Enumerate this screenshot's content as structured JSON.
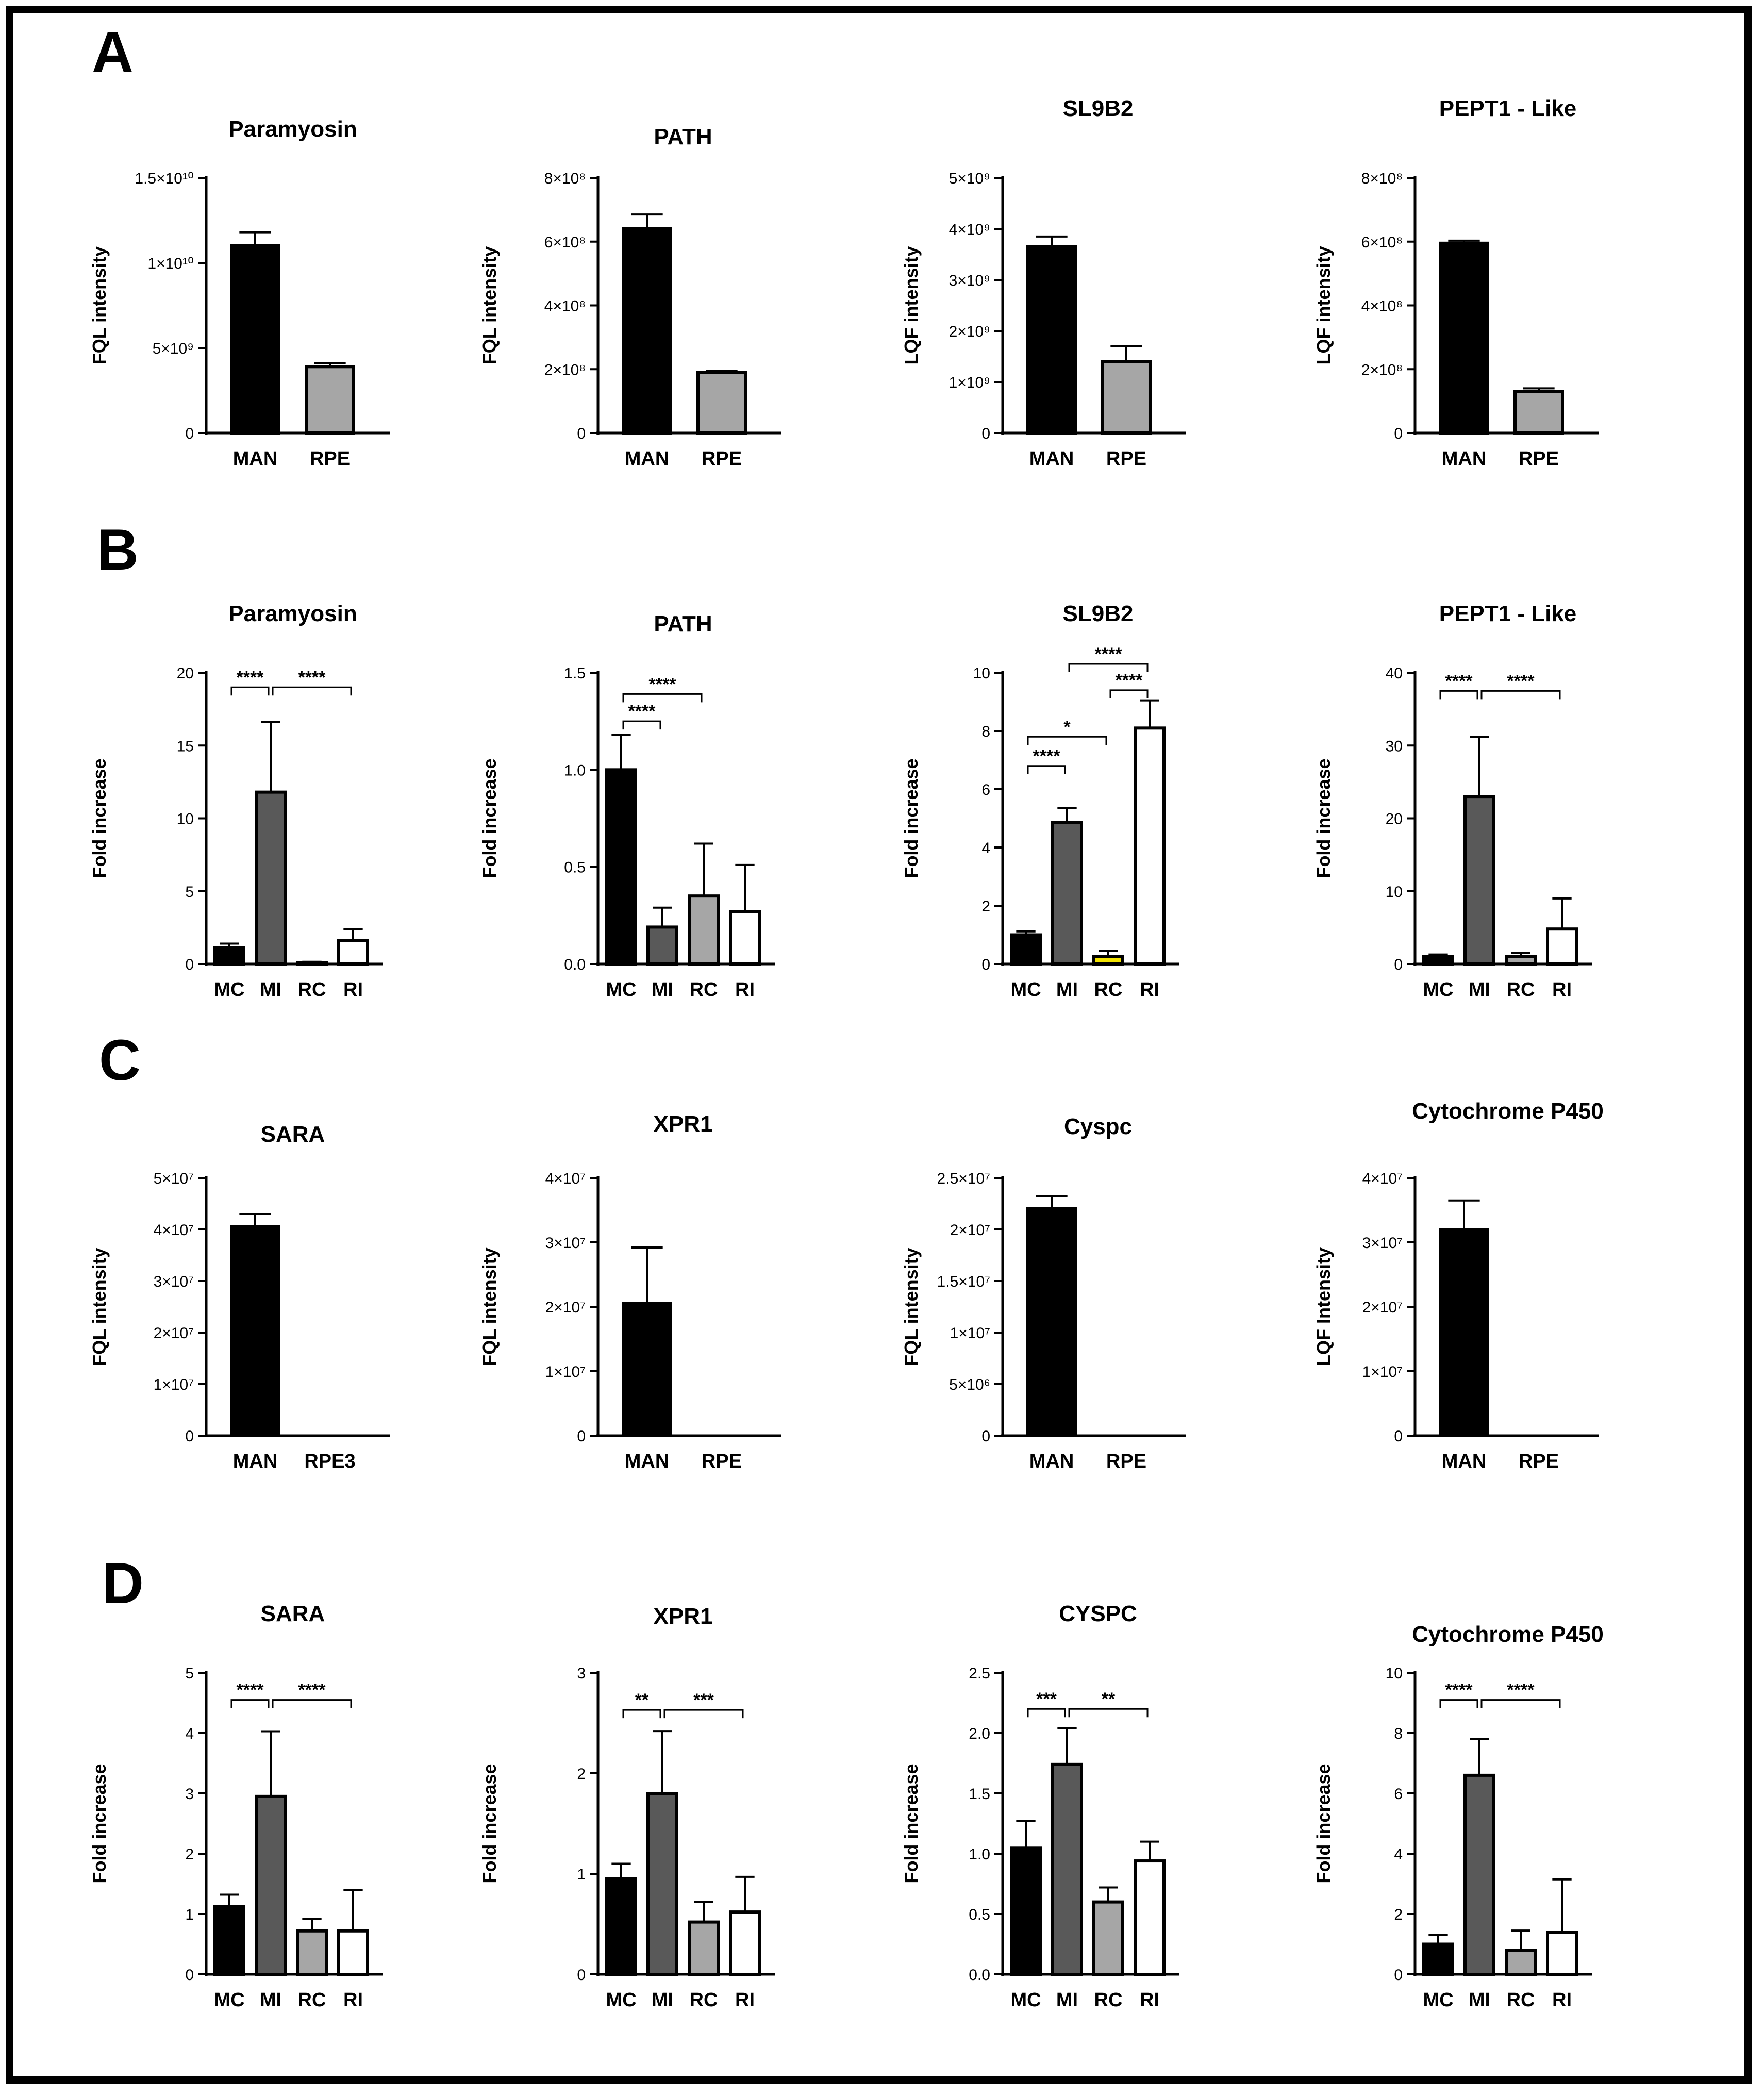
{
  "panels": [
    "A",
    "B",
    "C",
    "D"
  ],
  "colors": {
    "MAN": "#000000",
    "RPE": "#a6a6a6",
    "RPE3": "#a6a6a6",
    "MC": "#000000",
    "MI": "#595959",
    "RC": "#a6a6a6",
    "RI": "#ffffff",
    "RC_SL9B2": "#f2e300"
  },
  "chart_data": [
    {
      "id": "A1",
      "panel": "A",
      "type": "bar",
      "title": "Paramyosin",
      "ylabel": "FQL intensity",
      "categories": [
        "MAN",
        "RPE"
      ],
      "values": [
        11000000000,
        3900000000
      ],
      "errors": [
        800000000,
        200000000
      ],
      "ylim": [
        0,
        15000000000
      ],
      "ticks": [
        0,
        5000000000,
        10000000000,
        15000000000
      ],
      "tick_labels": [
        "0",
        "5×10⁹",
        "1×10¹⁰",
        "1.5×10¹⁰"
      ],
      "significance": []
    },
    {
      "id": "A2",
      "panel": "A",
      "type": "bar",
      "title": "PATH",
      "ylabel": "FQL intensity",
      "categories": [
        "MAN",
        "RPE"
      ],
      "values": [
        640000000,
        190000000
      ],
      "errors": [
        45000000,
        5000000
      ],
      "ylim": [
        0,
        800000000
      ],
      "ticks": [
        0,
        200000000,
        400000000,
        600000000,
        800000000
      ],
      "tick_labels": [
        "0",
        "2×10⁸",
        "4×10⁸",
        "6×10⁸",
        "8×10⁸"
      ],
      "significance": []
    },
    {
      "id": "A3",
      "panel": "A",
      "type": "bar",
      "title": "SL9B2",
      "ylabel": "LQF intensity",
      "categories": [
        "MAN",
        "RPE"
      ],
      "values": [
        3650000000,
        1400000000
      ],
      "errors": [
        200000000,
        300000000
      ],
      "ylim": [
        0,
        5000000000
      ],
      "ticks": [
        0,
        1000000000,
        2000000000,
        3000000000,
        4000000000,
        5000000000
      ],
      "tick_labels": [
        "0",
        "1×10⁹",
        "2×10⁹",
        "3×10⁹",
        "4×10⁹",
        "5×10⁹"
      ],
      "significance": []
    },
    {
      "id": "A4",
      "panel": "A",
      "type": "bar",
      "title": "PEPT1 - Like",
      "ylabel": "LQF intensity",
      "categories": [
        "MAN",
        "RPE"
      ],
      "values": [
        595000000,
        130000000
      ],
      "errors": [
        8000000,
        10000000
      ],
      "ylim": [
        0,
        800000000
      ],
      "ticks": [
        0,
        200000000,
        400000000,
        600000000,
        800000000
      ],
      "tick_labels": [
        "0",
        "2×10⁸",
        "4×10⁸",
        "6×10⁸",
        "8×10⁸"
      ],
      "significance": []
    },
    {
      "id": "B1",
      "panel": "B",
      "type": "bar",
      "title": "Paramyosin",
      "ylabel": "Fold increase",
      "categories": [
        "MC",
        "MI",
        "RC",
        "RI"
      ],
      "values": [
        1.1,
        11.8,
        0.1,
        1.6
      ],
      "errors": [
        0.3,
        4.8,
        0.05,
        0.8
      ],
      "ylim": [
        0,
        20
      ],
      "ticks": [
        0,
        5,
        10,
        15,
        20
      ],
      "tick_labels": [
        "0",
        "5",
        "10",
        "15",
        "20"
      ],
      "significance": [
        {
          "from": 0,
          "to": 1,
          "label": "****",
          "level": 19
        },
        {
          "from": 1,
          "to": 3,
          "label": "****",
          "level": 19
        }
      ]
    },
    {
      "id": "B2",
      "panel": "B",
      "type": "bar",
      "title": "PATH",
      "ylabel": "Fold increase",
      "categories": [
        "MC",
        "MI",
        "RC",
        "RI"
      ],
      "values": [
        1.0,
        0.19,
        0.35,
        0.27
      ],
      "errors": [
        0.18,
        0.1,
        0.27,
        0.24
      ],
      "ylim": [
        0,
        1.5
      ],
      "ticks": [
        0,
        0.5,
        1,
        1.5
      ],
      "tick_labels": [
        "0.0",
        "0.5",
        "1.0",
        "1.5"
      ],
      "significance": [
        {
          "from": 0,
          "to": 1,
          "label": "****",
          "level": 1.25
        },
        {
          "from": 0,
          "to": 2,
          "label": "****",
          "level": 1.39
        }
      ]
    },
    {
      "id": "B3",
      "panel": "B",
      "type": "bar",
      "title": "SL9B2",
      "ylabel": "Fold increase",
      "categories": [
        "MC",
        "MI",
        "RC",
        "RI"
      ],
      "values": [
        1.0,
        4.85,
        0.25,
        8.1
      ],
      "errors": [
        0.12,
        0.5,
        0.2,
        0.95
      ],
      "ylim": [
        0,
        10
      ],
      "ticks": [
        0,
        2,
        4,
        6,
        8,
        10
      ],
      "tick_labels": [
        "0",
        "2",
        "4",
        "6",
        "8",
        "10"
      ],
      "significance": [
        {
          "from": 0,
          "to": 1,
          "label": "****",
          "level": 6.8
        },
        {
          "from": 0,
          "to": 2,
          "label": "*",
          "level": 7.8
        },
        {
          "from": 2,
          "to": 3,
          "label": "****",
          "level": 9.4
        },
        {
          "from": 1,
          "to": 3,
          "label": "****",
          "level": 10.3
        }
      ]
    },
    {
      "id": "B4",
      "panel": "B",
      "type": "bar",
      "title": "PEPT1 - Like",
      "ylabel": "Fold increase",
      "categories": [
        "MC",
        "MI",
        "RC",
        "RI"
      ],
      "values": [
        1.0,
        23.0,
        1.0,
        4.8
      ],
      "errors": [
        0.3,
        8.2,
        0.5,
        4.2
      ],
      "ylim": [
        0,
        40
      ],
      "ticks": [
        0,
        10,
        20,
        30,
        40
      ],
      "tick_labels": [
        "0",
        "10",
        "20",
        "30",
        "40"
      ],
      "significance": [
        {
          "from": 0,
          "to": 1,
          "label": "****",
          "level": 37.5
        },
        {
          "from": 1,
          "to": 3,
          "label": "****",
          "level": 37.5
        }
      ]
    },
    {
      "id": "C1",
      "panel": "C",
      "type": "bar",
      "title": "SARA",
      "ylabel": "FQL intensity",
      "categories": [
        "MAN",
        "RPE3"
      ],
      "values": [
        40500000,
        0
      ],
      "errors": [
        2500000,
        0
      ],
      "ylim": [
        0,
        50000000
      ],
      "ticks": [
        0,
        10000000,
        20000000,
        30000000,
        40000000,
        50000000
      ],
      "tick_labels": [
        "0",
        "1×10⁷",
        "2×10⁷",
        "3×10⁷",
        "4×10⁷",
        "5×10⁷"
      ],
      "significance": []
    },
    {
      "id": "C2",
      "panel": "C",
      "type": "bar",
      "title": "XPR1",
      "ylabel": "FQL intensity",
      "categories": [
        "MAN",
        "RPE"
      ],
      "values": [
        20500000,
        0
      ],
      "errors": [
        8700000,
        0
      ],
      "ylim": [
        0,
        40000000
      ],
      "ticks": [
        0,
        10000000,
        20000000,
        30000000,
        40000000
      ],
      "tick_labels": [
        "0",
        "1×10⁷",
        "2×10⁷",
        "3×10⁷",
        "4×10⁷"
      ],
      "significance": []
    },
    {
      "id": "C3",
      "panel": "C",
      "type": "bar",
      "title": "Cyspc",
      "ylabel": "FQL intensity",
      "categories": [
        "MAN",
        "RPE"
      ],
      "values": [
        22000000,
        0
      ],
      "errors": [
        1200000,
        0
      ],
      "ylim": [
        0,
        25000000
      ],
      "ticks": [
        0,
        5000000,
        10000000,
        15000000,
        20000000,
        25000000
      ],
      "tick_labels": [
        "0",
        "5×10⁶",
        "1×10⁷",
        "1.5×10⁷",
        "2×10⁷",
        "2.5×10⁷"
      ],
      "significance": []
    },
    {
      "id": "C4",
      "panel": "C",
      "type": "bar",
      "title": "Cytochrome P450",
      "ylabel": "LQF Intensity",
      "categories": [
        "MAN",
        "RPE"
      ],
      "values": [
        32000000,
        0
      ],
      "errors": [
        4500000,
        0
      ],
      "ylim": [
        0,
        40000000
      ],
      "ticks": [
        0,
        10000000,
        20000000,
        30000000,
        40000000
      ],
      "tick_labels": [
        "0",
        "1×10⁷",
        "2×10⁷",
        "3×10⁷",
        "4×10⁷"
      ],
      "significance": []
    },
    {
      "id": "D1",
      "panel": "D",
      "type": "bar",
      "title": "SARA",
      "ylabel": "Fold increase",
      "categories": [
        "MC",
        "MI",
        "RC",
        "RI"
      ],
      "values": [
        1.12,
        2.95,
        0.72,
        0.72
      ],
      "errors": [
        0.2,
        1.08,
        0.2,
        0.68
      ],
      "ylim": [
        0,
        5
      ],
      "ticks": [
        0,
        1,
        2,
        3,
        4,
        5
      ],
      "tick_labels": [
        "0",
        "1",
        "2",
        "3",
        "4",
        "5"
      ],
      "significance": [
        {
          "from": 0,
          "to": 1,
          "label": "****",
          "level": 4.55
        },
        {
          "from": 1,
          "to": 3,
          "label": "****",
          "level": 4.55
        }
      ]
    },
    {
      "id": "D2",
      "panel": "D",
      "type": "bar",
      "title": "XPR1",
      "ylabel": "Fold increase",
      "categories": [
        "MC",
        "MI",
        "RC",
        "RI"
      ],
      "values": [
        0.95,
        1.8,
        0.52,
        0.62
      ],
      "errors": [
        0.15,
        0.62,
        0.2,
        0.35
      ],
      "ylim": [
        0,
        3
      ],
      "ticks": [
        0,
        1,
        2,
        3
      ],
      "tick_labels": [
        "0",
        "1",
        "2",
        "3"
      ],
      "significance": [
        {
          "from": 0,
          "to": 1,
          "label": "**",
          "level": 2.63
        },
        {
          "from": 1,
          "to": 3,
          "label": "***",
          "level": 2.63
        }
      ]
    },
    {
      "id": "D3",
      "panel": "D",
      "type": "bar",
      "title": "CYSPC",
      "ylabel": "Fold increase",
      "categories": [
        "MC",
        "MI",
        "RC",
        "RI"
      ],
      "values": [
        1.05,
        1.74,
        0.6,
        0.94
      ],
      "errors": [
        0.22,
        0.3,
        0.12,
        0.16
      ],
      "ylim": [
        0,
        2.5
      ],
      "ticks": [
        0,
        0.5,
        1,
        1.5,
        2,
        2.5
      ],
      "tick_labels": [
        "0.0",
        "0.5",
        "1.0",
        "1.5",
        "2.0",
        "2.5"
      ],
      "significance": [
        {
          "from": 0,
          "to": 1,
          "label": "***",
          "level": 2.2
        },
        {
          "from": 1,
          "to": 3,
          "label": "**",
          "level": 2.2
        }
      ]
    },
    {
      "id": "D4",
      "panel": "D",
      "type": "bar",
      "title": "Cytochrome P450",
      "ylabel": "Fold increase",
      "categories": [
        "MC",
        "MI",
        "RC",
        "RI"
      ],
      "values": [
        1.0,
        6.6,
        0.8,
        1.4
      ],
      "errors": [
        0.3,
        1.2,
        0.65,
        1.75
      ],
      "ylim": [
        0,
        10
      ],
      "ticks": [
        0,
        2,
        4,
        6,
        8,
        10
      ],
      "tick_labels": [
        "0",
        "2",
        "4",
        "6",
        "8",
        "10"
      ],
      "significance": [
        {
          "from": 0,
          "to": 1,
          "label": "****",
          "level": 9.1
        },
        {
          "from": 1,
          "to": 3,
          "label": "****",
          "level": 9.1
        }
      ]
    }
  ]
}
